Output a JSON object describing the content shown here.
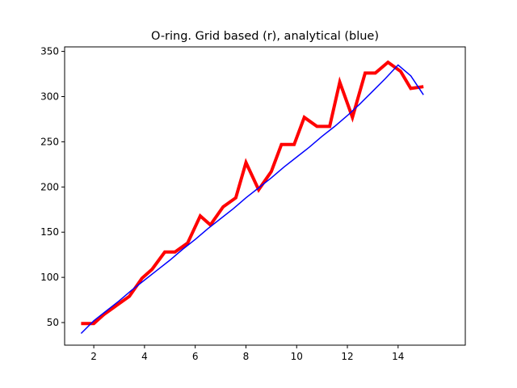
{
  "chart_data": {
    "type": "line",
    "title": "O-ring. Grid based (r), analytical (blue)",
    "xlabel": "",
    "ylabel": "",
    "xlim": [
      0.85,
      16.65
    ],
    "ylim": [
      25,
      355
    ],
    "x_ticks": [
      2,
      4,
      6,
      8,
      10,
      12,
      14
    ],
    "y_ticks": [
      50,
      100,
      150,
      200,
      250,
      300,
      350
    ],
    "grid": false,
    "series": [
      {
        "color": "#ff0000",
        "line_width": "thick",
        "x": [
          1.5,
          2.0,
          2.4,
          2.9,
          3.4,
          3.9,
          4.3,
          4.8,
          5.2,
          5.7,
          6.2,
          6.6,
          7.1,
          7.6,
          8.0,
          8.5,
          9.0,
          9.4,
          9.9,
          10.3,
          10.8,
          11.3,
          11.7,
          12.2,
          12.7,
          13.1,
          13.6,
          14.1,
          14.5,
          15.0
        ],
        "y": [
          49,
          49,
          59,
          69,
          79,
          99,
          109,
          128,
          128,
          138,
          168,
          158,
          178,
          188,
          227,
          197,
          217,
          247,
          247,
          277,
          267,
          267,
          316,
          277,
          326,
          326,
          338,
          328,
          309,
          311
        ]
      },
      {
        "color": "#0000ff",
        "line_width": "thin",
        "x": [
          1.5,
          2.0,
          2.5,
          3.0,
          3.5,
          4.0,
          4.5,
          5.0,
          5.5,
          6.0,
          6.5,
          7.0,
          7.5,
          8.0,
          8.5,
          9.0,
          9.5,
          10.0,
          10.5,
          11.0,
          11.5,
          12.0,
          12.5,
          13.0,
          13.5,
          14.0,
          14.5,
          15.0
        ],
        "y": [
          38,
          52,
          63,
          74,
          86,
          97,
          108,
          119,
          131,
          142,
          154,
          165,
          176,
          188,
          199,
          210,
          222,
          233,
          244,
          256,
          267,
          279,
          292,
          306,
          320,
          335,
          323,
          302
        ]
      }
    ]
  }
}
